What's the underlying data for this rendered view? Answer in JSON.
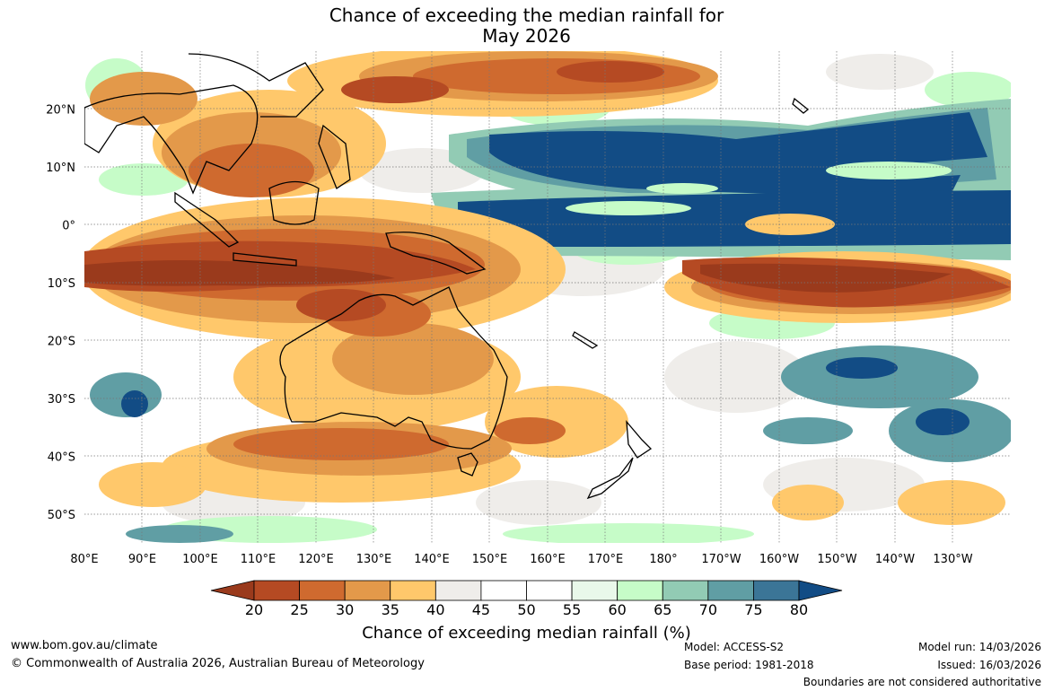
{
  "title": {
    "line1": "Chance of exceeding the median rainfall for",
    "line2": "May 2026"
  },
  "map": {
    "lat_labels": [
      "20°N",
      "10°N",
      "0°",
      "10°S",
      "20°S",
      "30°S",
      "40°S",
      "50°S"
    ],
    "lon_labels": [
      "80°E",
      "90°E",
      "100°E",
      "110°E",
      "120°E",
      "130°E",
      "140°E",
      "150°E",
      "160°E",
      "170°E",
      "180°",
      "170°W",
      "160°W",
      "150°W",
      "140°W",
      "130°W"
    ],
    "lat_values": [
      20,
      10,
      0,
      -10,
      -20,
      -30,
      -40,
      -50
    ],
    "lon_values": [
      80,
      90,
      100,
      110,
      120,
      130,
      140,
      150,
      160,
      170,
      180,
      190,
      200,
      210,
      220,
      230
    ],
    "lat_range": [
      -55,
      30
    ],
    "lon_range": [
      80,
      240
    ]
  },
  "colorbar": {
    "ticks": [
      "20",
      "25",
      "30",
      "35",
      "40",
      "45",
      "50",
      "55",
      "60",
      "65",
      "70",
      "75",
      "80"
    ],
    "colors": [
      "#9a3a1c",
      "#b54a23",
      "#cf6a2f",
      "#e3994a",
      "#ffc86b",
      "#efedea",
      "#ffffff",
      "#ffffff",
      "#e9f8ea",
      "#c6fcc8",
      "#92cbb4",
      "#609ea4",
      "#3b7597",
      "#124c85"
    ],
    "label": "Chance of exceeding median rainfall (%)"
  },
  "footer": {
    "url": "www.bom.gov.au/climate",
    "copyright": "© Commonwealth of Australia 2026, Australian Bureau of Meteorology",
    "model": "Model: ACCESS-S2",
    "base_period": "Base period: 1981-2018",
    "model_run": "Model run: 14/03/2026",
    "issued": "Issued: 16/03/2026",
    "disclaimer": "Boundaries are not considered authoritative"
  }
}
